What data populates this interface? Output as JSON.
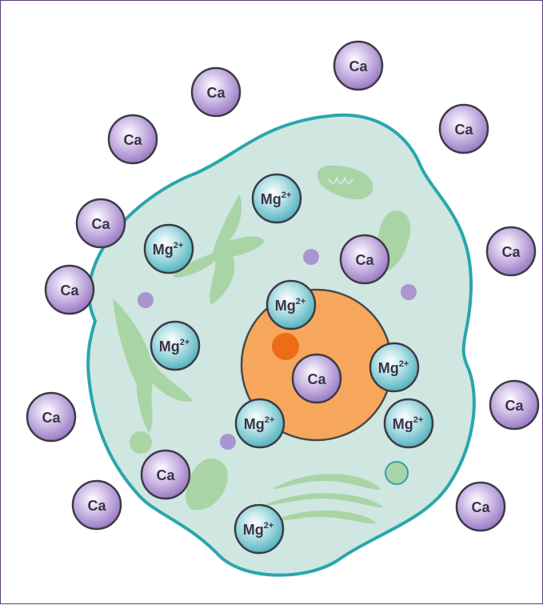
{
  "diagram": {
    "colors": {
      "cell_fill": "#cfe6e1",
      "cell_stroke": "#2aa6ad",
      "organelle": "#a9d5a6",
      "nucleus_fill": "#f7a75c",
      "nucleolus": "#ef6c16",
      "ca_ion": "#8d6bbb",
      "mg_ion": "#57b9c4",
      "vesicle": "#a996d0"
    },
    "ions": [
      {
        "kind": "ca",
        "label": "Ca",
        "sup": "",
        "location": "outside"
      },
      {
        "kind": "ca",
        "label": "Ca",
        "sup": "",
        "location": "outside"
      },
      {
        "kind": "ca",
        "label": "Ca",
        "sup": "",
        "location": "outside"
      },
      {
        "kind": "ca",
        "label": "Ca",
        "sup": "",
        "location": "outside"
      },
      {
        "kind": "ca",
        "label": "Ca",
        "sup": "",
        "location": "outside"
      },
      {
        "kind": "ca",
        "label": "Ca",
        "sup": "",
        "location": "outside"
      },
      {
        "kind": "ca",
        "label": "Ca",
        "sup": "",
        "location": "outside"
      },
      {
        "kind": "ca",
        "label": "Ca",
        "sup": "",
        "location": "outside"
      },
      {
        "kind": "ca",
        "label": "Ca",
        "sup": "",
        "location": "outside"
      },
      {
        "kind": "ca",
        "label": "Ca",
        "sup": "",
        "location": "outside"
      },
      {
        "kind": "ca",
        "label": "Ca",
        "sup": "",
        "location": "outside"
      },
      {
        "kind": "ca",
        "label": "Ca",
        "sup": "",
        "location": "cytoplasm"
      },
      {
        "kind": "ca",
        "label": "Ca",
        "sup": "",
        "location": "cytoplasm"
      },
      {
        "kind": "ca",
        "label": "Ca",
        "sup": "",
        "location": "nucleus"
      },
      {
        "kind": "mg",
        "label": "Mg",
        "sup": "2+",
        "location": "cytoplasm"
      },
      {
        "kind": "mg",
        "label": "Mg",
        "sup": "2+",
        "location": "cytoplasm"
      },
      {
        "kind": "mg",
        "label": "Mg",
        "sup": "2+",
        "location": "cytoplasm"
      },
      {
        "kind": "mg",
        "label": "Mg",
        "sup": "2+",
        "location": "nucleus"
      },
      {
        "kind": "mg",
        "label": "Mg",
        "sup": "2+",
        "location": "nucleus"
      },
      {
        "kind": "mg",
        "label": "Mg",
        "sup": "2+",
        "location": "nucleus"
      },
      {
        "kind": "mg",
        "label": "Mg",
        "sup": "2+",
        "location": "cytoplasm"
      },
      {
        "kind": "mg",
        "label": "Mg",
        "sup": "2+",
        "location": "cytoplasm"
      }
    ]
  }
}
